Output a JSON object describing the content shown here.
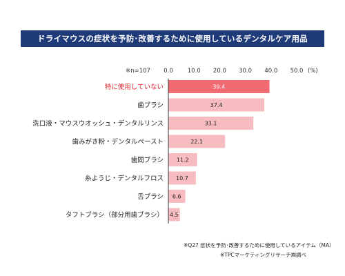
{
  "title": "ドライマウスの症状を予防･改善するために使用しているデンタルケア用品",
  "sample_label": "※n=107",
  "unit_label": "(%)",
  "notes": [
    "※Q27 症状を予防･改善するために使用しているアイテム（MA）",
    "※TPCマーケティングリサーチ㈱調べ"
  ],
  "colors": {
    "banner": "#1f3a78",
    "highlight_bar": "#f26b72",
    "normal_bar": "#f7bcc0",
    "highlight_text": "#e0202a",
    "axis": "#333333"
  },
  "chart_data": {
    "type": "bar",
    "orientation": "horizontal",
    "categories": [
      "特に使用していない",
      "歯ブラシ",
      "洗口液・マウスウオッシュ・デンタルリンス",
      "歯みがき粉・デンタルペースト",
      "歯間ブラシ",
      "糸ようじ・デンタルフロス",
      "舌ブラシ",
      "タフトブラシ（部分用歯ブラシ）"
    ],
    "values": [
      39.4,
      37.4,
      33.1,
      22.1,
      11.2,
      10.7,
      6.6,
      4.5
    ],
    "value_labels": [
      "39.4",
      "37.4",
      "33.1",
      "22.1",
      "11.2",
      "10.7",
      "6.6",
      "4.5"
    ],
    "highlight_index": 0,
    "xlim": [
      0,
      50
    ],
    "ticks": [
      "0.0",
      "10.0",
      "20.0",
      "30.0",
      "40.0",
      "50.0"
    ],
    "tick_values": [
      0,
      10,
      20,
      30,
      40,
      50
    ]
  }
}
